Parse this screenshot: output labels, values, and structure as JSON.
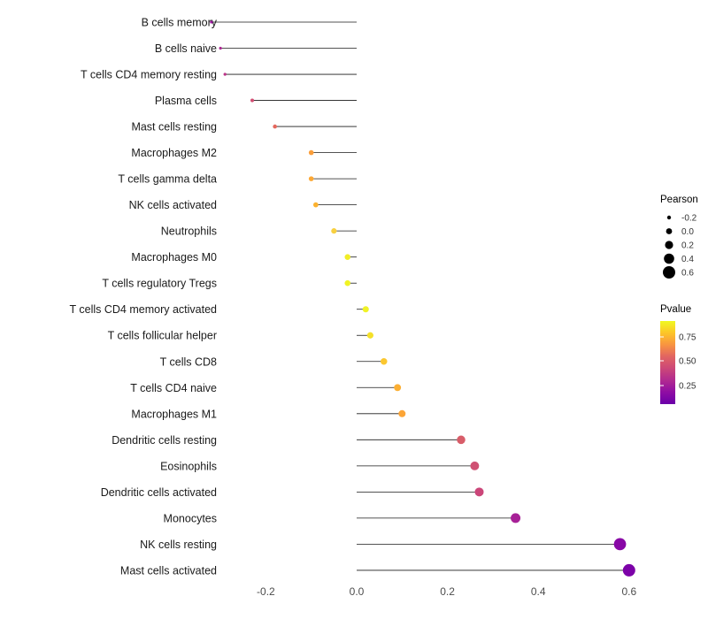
{
  "chart_data": {
    "type": "lollipop",
    "title": "",
    "xlabel": "",
    "ylabel": "",
    "categories": [
      "B cells memory",
      "B cells naive",
      "T cells CD4 memory resting",
      "Plasma cells",
      "Mast cells resting",
      "Macrophages M2",
      "T cells gamma delta",
      "NK cells activated",
      "Neutrophils",
      "Macrophages M0",
      "T cells regulatory  Tregs",
      "T cells CD4 memory activated",
      "T cells follicular helper",
      "T cells CD8",
      "T cells CD4 naive",
      "Macrophages M1",
      "Dendritic cells resting",
      "Eosinophils",
      "Dendritic cells activated",
      "Monocytes",
      "NK cells resting",
      "Mast cells activated"
    ],
    "values": [
      -0.32,
      -0.3,
      -0.29,
      -0.23,
      -0.18,
      -0.1,
      -0.1,
      -0.09,
      -0.05,
      -0.02,
      -0.02,
      0.02,
      0.03,
      0.06,
      0.09,
      0.1,
      0.23,
      0.26,
      0.27,
      0.35,
      0.58,
      0.6
    ],
    "point_colors": [
      "#9C179E",
      "#AE2892",
      "#BB3488",
      "#D14E72",
      "#E4685D",
      "#FB9E3A",
      "#FCA835",
      "#FCB22F",
      "#F8D040",
      "#F1ED27",
      "#F0F323",
      "#F0F226",
      "#F4E02A",
      "#FBC72F",
      "#FCAF33",
      "#FCA537",
      "#D85D69",
      "#CF5173",
      "#CB4679",
      "#A72197",
      "#8808A6",
      "#7C02A8"
    ],
    "x_ticks": [
      "-0.2",
      "0.0",
      "0.2",
      "0.4",
      "0.6"
    ],
    "x_tick_values": [
      -0.2,
      0.0,
      0.2,
      0.4,
      0.6
    ],
    "xlim": [
      -0.38,
      0.66
    ],
    "grid": "off",
    "legend_position": "right",
    "size_legend": {
      "title": "Pearson",
      "labels": [
        "-0.2",
        "0.0",
        "0.2",
        "0.4",
        "0.6"
      ],
      "values": [
        -0.2,
        0.0,
        0.2,
        0.4,
        0.6
      ]
    },
    "color_legend": {
      "title": "Pvalue",
      "labels": [
        "0.75",
        "0.50",
        "0.25"
      ],
      "gradient_top_to_bottom": [
        "#F0F921",
        "#FDC527",
        "#F89441",
        "#E16462",
        "#CC4778",
        "#B12A90",
        "#8F0DA4",
        "#6A00A8"
      ]
    }
  },
  "colors": {
    "background": "#ffffff",
    "stem": "#1a1a1a",
    "category_text": "#1a1a1a",
    "tick_text": "#4d4d4d",
    "size_legend_dot": "#000000"
  }
}
